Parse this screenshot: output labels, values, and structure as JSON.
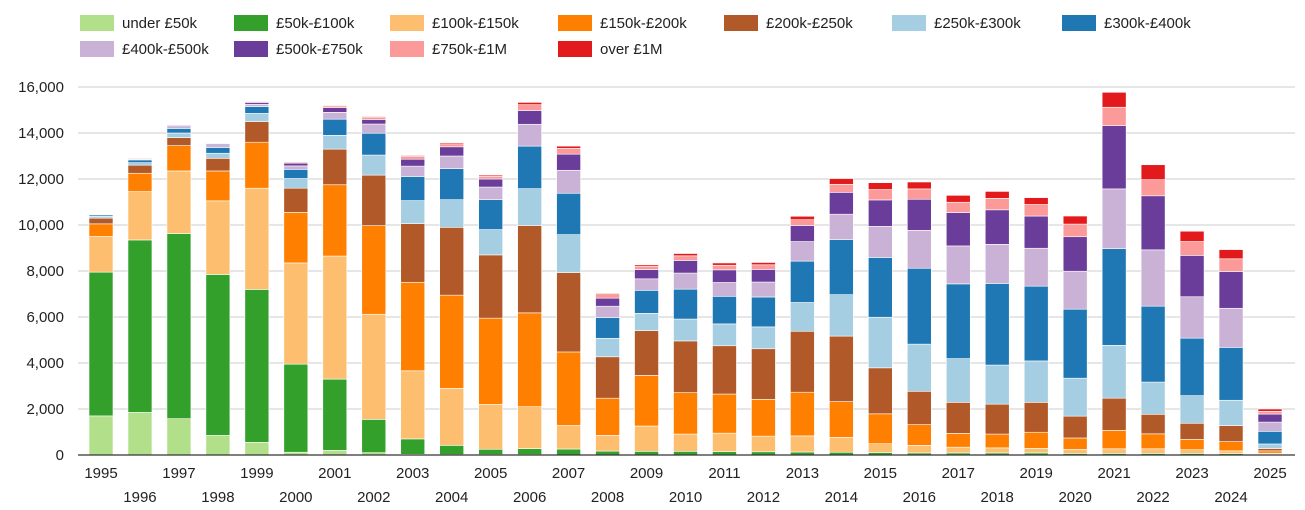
{
  "chart_data": {
    "type": "bar",
    "stacked": true,
    "title": "",
    "xlabel": "",
    "ylabel": "",
    "ylim": [
      0,
      16000
    ],
    "yticks": [
      0,
      2000,
      4000,
      6000,
      8000,
      10000,
      12000,
      14000,
      16000
    ],
    "ytick_labels": [
      "0",
      "2,000",
      "4,000",
      "6,000",
      "8,000",
      "10,000",
      "12,000",
      "14,000",
      "16,000"
    ],
    "grid": true,
    "legend_position": "top",
    "categories": [
      "1995",
      "1996",
      "1997",
      "1998",
      "1999",
      "2000",
      "2001",
      "2002",
      "2003",
      "2004",
      "2005",
      "2006",
      "2007",
      "2008",
      "2009",
      "2010",
      "2011",
      "2012",
      "2013",
      "2014",
      "2015",
      "2016",
      "2017",
      "2018",
      "2019",
      "2020",
      "2021",
      "2022",
      "2023",
      "2024",
      "2025"
    ],
    "series": [
      {
        "name": "under £50k",
        "color": "#b2df8a",
        "values": [
          1700,
          1850,
          1580,
          850,
          550,
          120,
          200,
          100,
          30,
          20,
          20,
          20,
          10,
          10,
          10,
          10,
          10,
          10,
          10,
          10,
          10,
          10,
          10,
          10,
          10,
          10,
          10,
          10,
          10,
          10,
          10
        ]
      },
      {
        "name": "£50k-£100k",
        "color": "#33a02c",
        "values": [
          6250,
          7500,
          8050,
          7000,
          6650,
          3830,
          3100,
          1450,
          670,
          400,
          230,
          260,
          250,
          160,
          150,
          150,
          140,
          130,
          120,
          110,
          100,
          80,
          80,
          80,
          80,
          60,
          60,
          60,
          60,
          50,
          30
        ]
      },
      {
        "name": "£100k-£150k",
        "color": "#fdbf6f",
        "values": [
          1550,
          2100,
          2720,
          3200,
          4400,
          4400,
          5350,
          4570,
          2960,
          2480,
          1950,
          1820,
          1020,
          680,
          1100,
          750,
          800,
          680,
          700,
          650,
          380,
          330,
          250,
          220,
          200,
          170,
          200,
          200,
          160,
          120,
          40
        ]
      },
      {
        "name": "£150k-£200k",
        "color": "#ff7f00",
        "values": [
          550,
          800,
          1100,
          1300,
          2000,
          2200,
          3100,
          3850,
          3850,
          4050,
          3750,
          4080,
          3200,
          1620,
          2200,
          1800,
          1700,
          1600,
          1900,
          1550,
          1300,
          900,
          600,
          600,
          700,
          500,
          800,
          650,
          450,
          400,
          100
        ]
      },
      {
        "name": "£200k-£250k",
        "color": "#b15928",
        "values": [
          250,
          350,
          350,
          550,
          900,
          1050,
          1550,
          2200,
          2550,
          2950,
          2750,
          3800,
          3450,
          1800,
          1950,
          2250,
          2100,
          2200,
          2650,
          2850,
          2000,
          1450,
          1350,
          1300,
          1300,
          950,
          1400,
          850,
          700,
          700,
          100
        ]
      },
      {
        "name": "£250k-£300k",
        "color": "#a6cee3",
        "values": [
          80,
          110,
          200,
          220,
          350,
          420,
          600,
          870,
          1000,
          1200,
          1100,
          1600,
          1650,
          800,
          750,
          950,
          950,
          950,
          1250,
          1800,
          2200,
          2050,
          1900,
          1700,
          1800,
          1650,
          2300,
          1400,
          1200,
          1100,
          200
        ]
      },
      {
        "name": "£300k-£400k",
        "color": "#1f78b4",
        "values": [
          60,
          120,
          200,
          250,
          300,
          400,
          700,
          950,
          1050,
          1350,
          1300,
          1850,
          1800,
          900,
          1000,
          1300,
          1200,
          1300,
          1800,
          2400,
          2600,
          3300,
          3250,
          3550,
          3250,
          3000,
          4200,
          3300,
          2500,
          2300,
          550
        ]
      },
      {
        "name": "£400k-£500k",
        "color": "#cab2d6",
        "values": [
          25,
          40,
          80,
          80,
          100,
          150,
          300,
          400,
          450,
          550,
          550,
          950,
          1000,
          500,
          500,
          700,
          600,
          650,
          850,
          1100,
          1350,
          1650,
          1650,
          1700,
          1650,
          1650,
          2600,
          2450,
          1800,
          1700,
          400
        ]
      },
      {
        "name": "£500k-£750k",
        "color": "#6a3d9a",
        "values": [
          20,
          30,
          50,
          60,
          80,
          120,
          200,
          200,
          300,
          400,
          350,
          600,
          700,
          350,
          400,
          550,
          550,
          550,
          700,
          950,
          1150,
          1350,
          1450,
          1500,
          1400,
          1500,
          2750,
          2350,
          1800,
          1600,
          350
        ]
      },
      {
        "name": "£750k-£1M",
        "color": "#fb9a99",
        "values": [
          5,
          10,
          20,
          30,
          40,
          50,
          80,
          100,
          120,
          130,
          120,
          250,
          250,
          150,
          150,
          200,
          200,
          200,
          250,
          350,
          450,
          450,
          450,
          500,
          500,
          550,
          800,
          700,
          600,
          550,
          120
        ]
      },
      {
        "name": "over £1M",
        "color": "#e31a1c",
        "values": [
          5,
          5,
          10,
          10,
          20,
          20,
          30,
          30,
          40,
          50,
          50,
          100,
          100,
          50,
          60,
          100,
          100,
          100,
          150,
          250,
          300,
          300,
          300,
          300,
          300,
          350,
          650,
          650,
          450,
          400,
          100
        ]
      }
    ]
  }
}
